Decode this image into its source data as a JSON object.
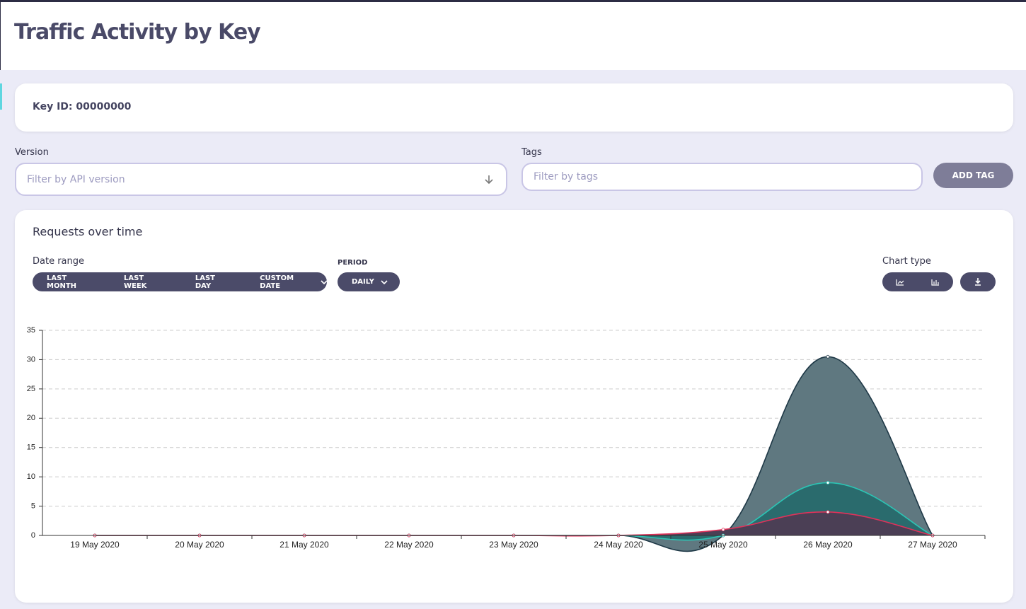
{
  "header": {
    "title": "Traffic Activity by Key"
  },
  "key_card": {
    "label": "Key ID: 00000000"
  },
  "filters": {
    "version_label": "Version",
    "version_placeholder": "Filter by API version",
    "tags_label": "Tags",
    "tags_placeholder": "Filter by tags",
    "add_tag": "ADD TAG"
  },
  "panel": {
    "title": "Requests over time",
    "date_range_label": "Date range",
    "date_buttons": [
      "LAST MONTH",
      "LAST WEEK",
      "LAST DAY",
      "CUSTOM DATE"
    ],
    "period_label": "PERIOD",
    "period_value": "DAILY",
    "chart_type_label": "Chart type"
  },
  "chart_data": {
    "type": "area",
    "categories": [
      "19 May 2020",
      "20 May 2020",
      "21 May 2020",
      "22 May 2020",
      "23 May 2020",
      "24 May 2020",
      "25 May 2020",
      "26 May 2020",
      "27 May 2020"
    ],
    "series": [
      {
        "color": "#1e3846",
        "fill": "#5f7880",
        "values": [
          0,
          0,
          0,
          0,
          0,
          0,
          0,
          30.5,
          0
        ]
      },
      {
        "color": "#2cc4b4",
        "fill": "#2a6b6d",
        "values": [
          0,
          0,
          0,
          0,
          0,
          0,
          0,
          9,
          0
        ]
      },
      {
        "color": "#e0325a",
        "fill": "#4b3f55",
        "values": [
          0,
          0,
          0,
          0,
          0,
          0,
          1,
          4,
          0
        ]
      }
    ],
    "ylim": [
      0,
      35
    ],
    "yticks": [
      0,
      5,
      10,
      15,
      20,
      25,
      30,
      35
    ],
    "grid": true
  }
}
